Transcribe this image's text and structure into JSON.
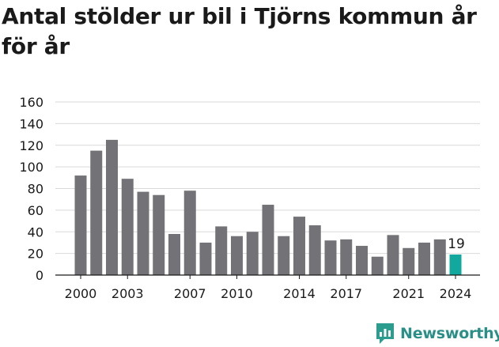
{
  "title": "Antal stölder ur bil i Tjörns kommun år för år",
  "brand": {
    "name": "Newsworthy",
    "icon": "newsworthy-logo-icon",
    "color": "#2a9d8f"
  },
  "colors": {
    "bar": "#737277",
    "highlight": "#13a89e",
    "grid": "#d9d9d9",
    "axis": "#1a1a1a"
  },
  "chart_data": {
    "type": "bar",
    "title": "Antal stölder ur bil i Tjörns kommun år för år",
    "xlabel": "",
    "ylabel": "",
    "ylim": [
      0,
      160
    ],
    "yticks": [
      0,
      20,
      40,
      60,
      80,
      100,
      120,
      140,
      160
    ],
    "categories": [
      "2000",
      "2001",
      "2002",
      "2003",
      "2004",
      "2005",
      "2006",
      "2007",
      "2008",
      "2009",
      "2010",
      "2011",
      "2012",
      "2013",
      "2014",
      "2015",
      "2016",
      "2017",
      "2018",
      "2019",
      "2020",
      "2021",
      "2022",
      "2023",
      "2024"
    ],
    "values": [
      92,
      115,
      125,
      89,
      77,
      74,
      38,
      78,
      30,
      45,
      36,
      40,
      65,
      36,
      54,
      46,
      32,
      33,
      27,
      17,
      37,
      25,
      30,
      33,
      19
    ],
    "xtick_labels": [
      "2000",
      "2003",
      "2007",
      "2010",
      "2014",
      "2017",
      "2021",
      "2024"
    ],
    "highlight": {
      "category": "2024",
      "label": "19"
    },
    "grid": true,
    "legend": "none"
  }
}
